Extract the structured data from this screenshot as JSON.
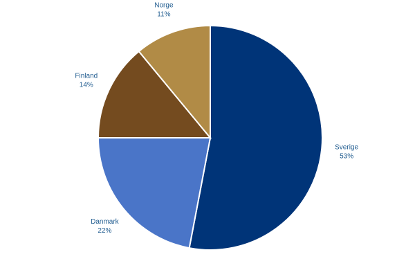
{
  "chart_data": {
    "type": "pie",
    "title": "",
    "label_color": "#1f5b8f",
    "slices": [
      {
        "label": "Sverige",
        "value": 53,
        "value_label": "53%",
        "color": "#003478"
      },
      {
        "label": "Danmark",
        "value": 22,
        "value_label": "22%",
        "color": "#4a75c8"
      },
      {
        "label": "Finland",
        "value": 14,
        "value_label": "14%",
        "color": "#744b1f"
      },
      {
        "label": "Norge",
        "value": 11,
        "value_label": "11%",
        "color": "#b18b46"
      }
    ]
  }
}
